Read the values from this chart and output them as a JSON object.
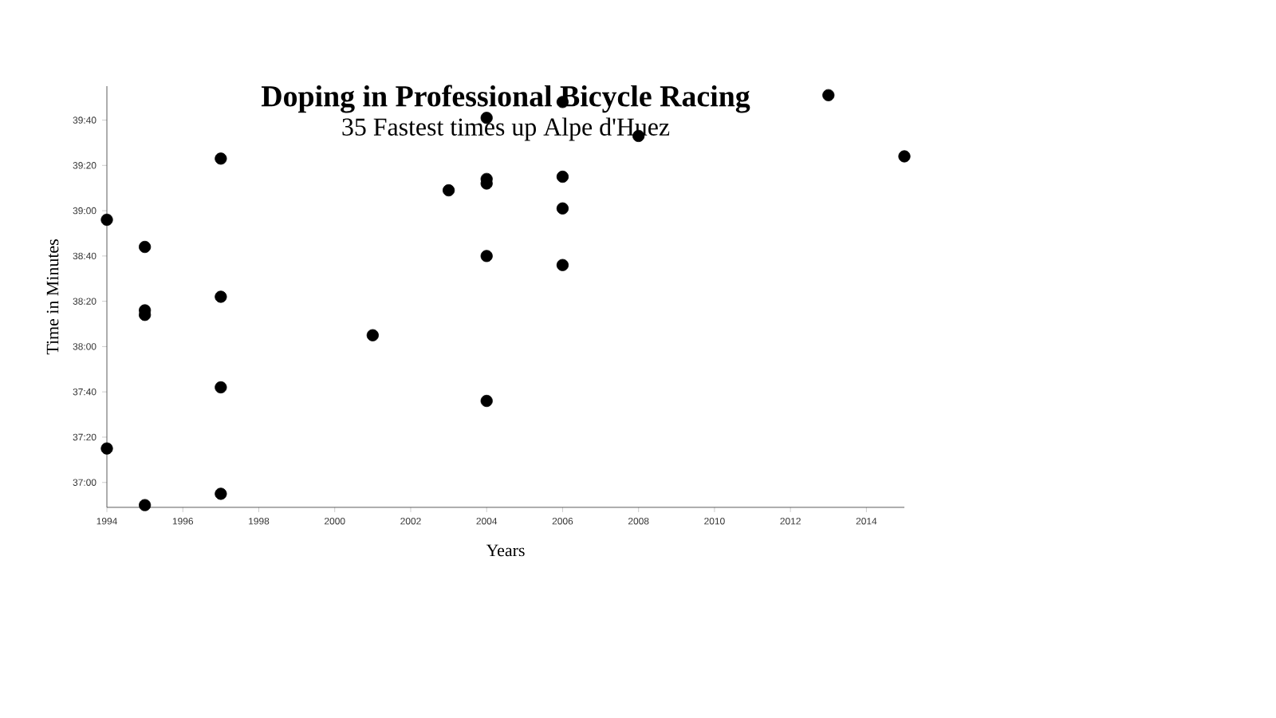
{
  "chart_data": {
    "type": "scatter",
    "title": "Doping in Professional Bicycle Racing",
    "subtitle": "35 Fastest times up Alpe d'Huez",
    "xlabel": "Years",
    "ylabel": "Time in Minutes",
    "x": [
      1994,
      1994,
      1995,
      1995,
      1995,
      1995,
      1997,
      1997,
      1997,
      1997,
      2001,
      2003,
      2004,
      2004,
      2004,
      2004,
      2004,
      2006,
      2006,
      2006,
      2006,
      2008,
      2013,
      2015
    ],
    "values": [
      2336,
      2235,
      2324,
      2296,
      2294,
      2210,
      2363,
      2302,
      2262,
      2215,
      2285,
      2349,
      2381,
      2354,
      2352,
      2320,
      2256,
      2388,
      2355,
      2341,
      2316,
      2373,
      2391,
      2364
    ],
    "color": "#000000",
    "xlim": [
      1994,
      2015
    ],
    "xticks": [
      1994,
      1996,
      1998,
      2000,
      2002,
      2004,
      2006,
      2008,
      2010,
      2012,
      2014
    ],
    "ylim": [
      2209,
      2395
    ],
    "yticks": [
      {
        "value": 2220,
        "label": "37:00"
      },
      {
        "value": 2240,
        "label": "37:20"
      },
      {
        "value": 2260,
        "label": "37:40"
      },
      {
        "value": 2280,
        "label": "38:00"
      },
      {
        "value": 2300,
        "label": "38:20"
      },
      {
        "value": 2320,
        "label": "38:40"
      },
      {
        "value": 2340,
        "label": "39:00"
      },
      {
        "value": 2360,
        "label": "39:20"
      },
      {
        "value": 2380,
        "label": "39:40"
      }
    ],
    "grid": false
  }
}
